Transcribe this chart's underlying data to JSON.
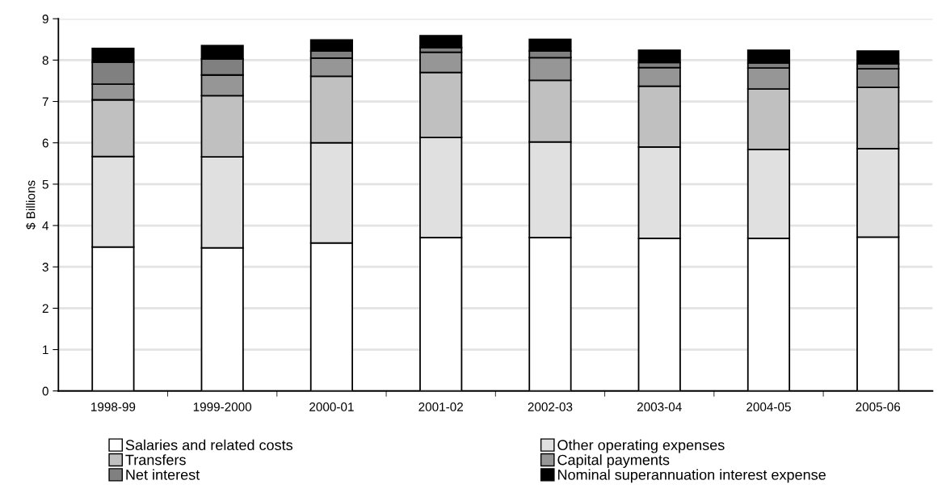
{
  "chart_data": {
    "type": "bar",
    "stacked": true,
    "ylabel": "$ Billions",
    "categories": [
      "1998-99",
      "1999-2000",
      "2000-01",
      "2001-02",
      "2002-03",
      "2003-04",
      "2004-05",
      "2005-06"
    ],
    "series": [
      {
        "name": "Salaries and related costs",
        "color": "#ffffff",
        "values": [
          3.48,
          3.46,
          3.58,
          3.71,
          3.71,
          3.69,
          3.69,
          3.72
        ]
      },
      {
        "name": "Other operating expenses",
        "color": "#e0e0e0",
        "values": [
          2.19,
          2.2,
          2.42,
          2.42,
          2.31,
          2.21,
          2.15,
          2.14
        ]
      },
      {
        "name": "Transfers",
        "color": "#c0c0c0",
        "values": [
          1.37,
          1.48,
          1.61,
          1.57,
          1.49,
          1.47,
          1.46,
          1.48
        ]
      },
      {
        "name": "Capital payments",
        "color": "#969696",
        "values": [
          0.38,
          0.5,
          0.44,
          0.49,
          0.55,
          0.45,
          0.51,
          0.45
        ]
      },
      {
        "name": "Net interest",
        "color": "#808080",
        "values": [
          0.53,
          0.39,
          0.17,
          0.11,
          0.16,
          0.12,
          0.12,
          0.12
        ]
      },
      {
        "name": "Nominal superannuation interest expense",
        "color": "#000000",
        "values": [
          0.33,
          0.32,
          0.27,
          0.29,
          0.28,
          0.3,
          0.31,
          0.31
        ]
      }
    ],
    "ylim": [
      0,
      9
    ],
    "yticks": [
      0,
      1,
      2,
      3,
      4,
      5,
      6,
      7,
      8,
      9
    ],
    "grid": "y",
    "legend": "bottom"
  }
}
